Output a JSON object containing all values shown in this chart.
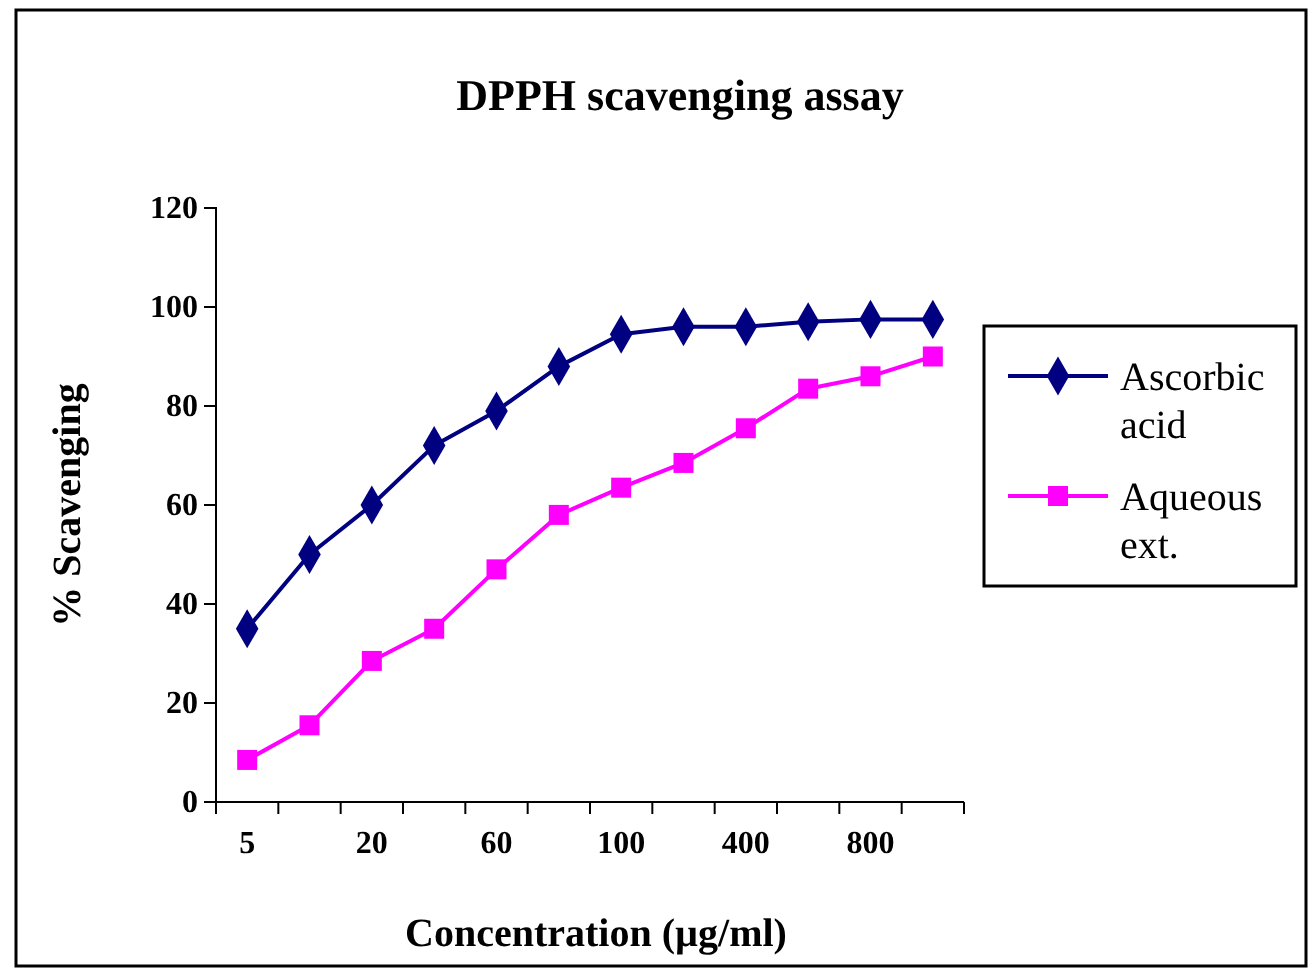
{
  "chart_data": {
    "type": "line",
    "title": "DPPH scavenging assay",
    "xlabel": "Concentration (µg/ml)",
    "ylabel": "% Scavenging",
    "categories": [
      "5",
      null,
      "20",
      null,
      "60",
      null,
      "100",
      null,
      "400",
      null,
      "800",
      null
    ],
    "ylim": [
      0,
      120
    ],
    "yticks": [
      0,
      20,
      40,
      60,
      80,
      100,
      120
    ],
    "grid": false,
    "legend": "right",
    "series": [
      {
        "name": "Ascorbic acid",
        "color": "#000080",
        "marker": "diamond",
        "values": [
          35,
          50,
          60,
          72,
          79,
          88,
          94.5,
          96,
          96,
          97,
          97.5,
          97.5
        ]
      },
      {
        "name": "Aqueous ext.",
        "color": "#ff00ff",
        "marker": "square",
        "values": [
          8.5,
          15.5,
          28.5,
          35,
          47,
          58,
          63.5,
          68.5,
          75.5,
          83.5,
          86,
          90
        ]
      }
    ]
  }
}
